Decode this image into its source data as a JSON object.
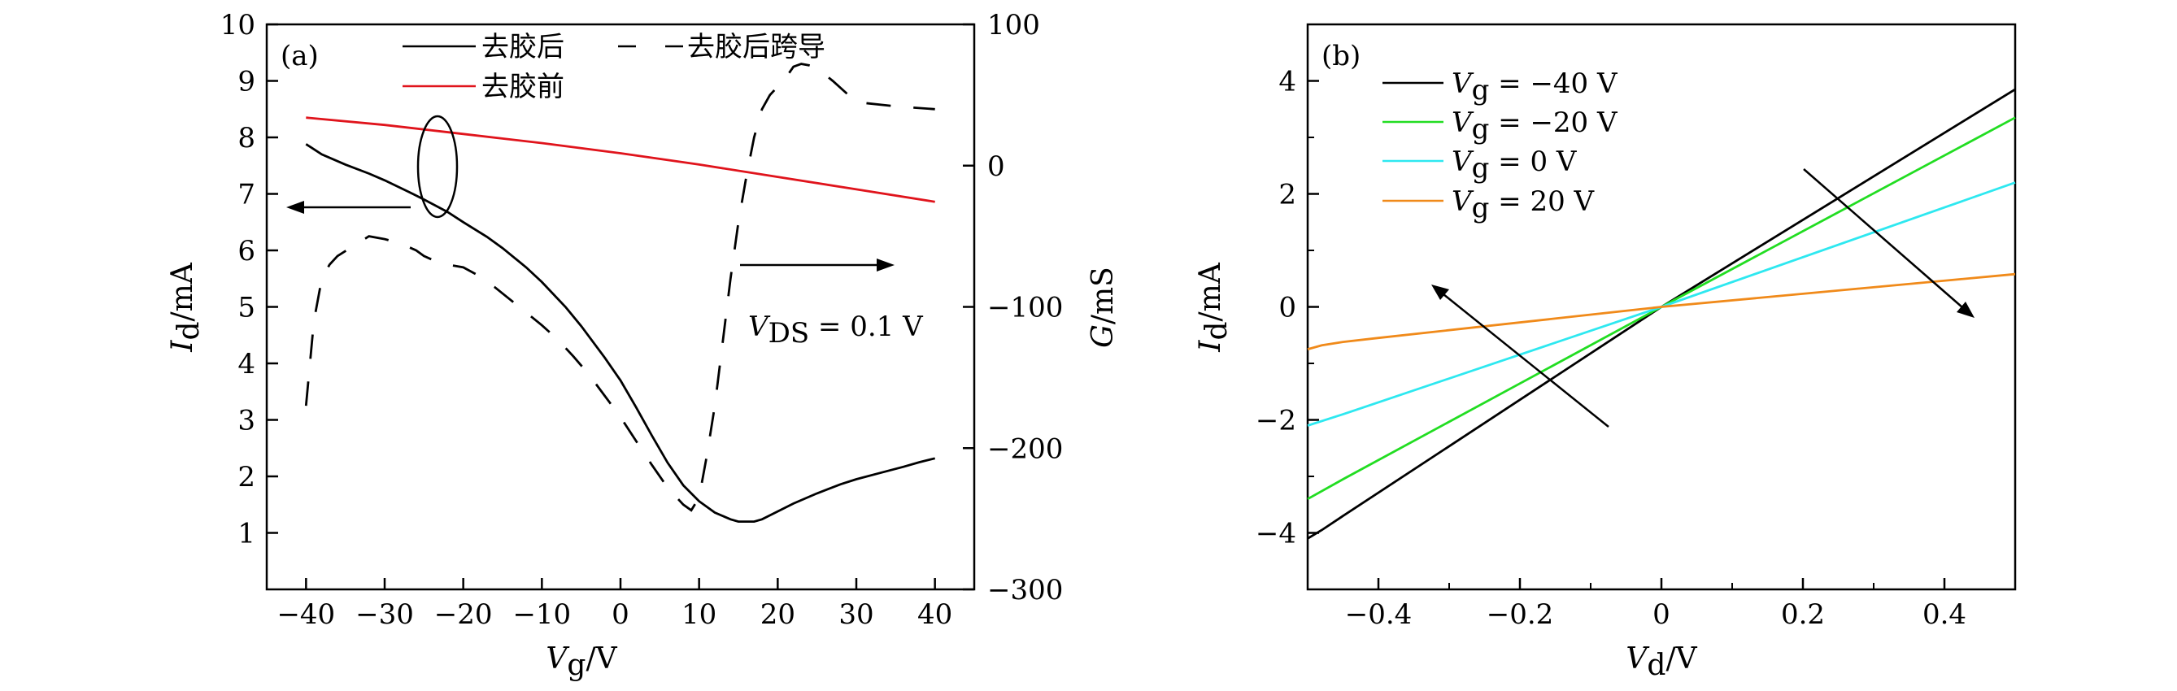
{
  "chart_data": [
    {
      "panel": "(a)",
      "type": "line",
      "xlabel": {
        "main": "V",
        "sub": "g",
        "unit": "/V"
      },
      "ylabel_left": {
        "main": "I",
        "sub": "d",
        "unit": "/mA"
      },
      "ylabel_right": {
        "main": "G",
        "unit": "/mS"
      },
      "xlim": [
        -45,
        45
      ],
      "ylim_left": [
        0,
        10
      ],
      "ylim_right": [
        -300,
        100
      ],
      "xticks": [
        -40,
        -30,
        -20,
        -10,
        0,
        10,
        20,
        30,
        40
      ],
      "xtick_labels": [
        "−40",
        "−30",
        "−20",
        "−10",
        "0",
        "10",
        "20",
        "30",
        "40"
      ],
      "yticks_left": [
        1,
        2,
        3,
        4,
        5,
        6,
        7,
        8,
        9,
        10
      ],
      "yticks_right": [
        -300,
        -200,
        -100,
        0,
        100
      ],
      "ytick_labels_right": [
        "−300",
        "−200",
        "−100",
        "0",
        "100"
      ],
      "annotation": {
        "main": "V",
        "sub": "DS",
        "rest": " = 0.1 V"
      },
      "legend": [
        {
          "label": "去胶后",
          "style": "solid",
          "color": "#000000"
        },
        {
          "label": "去胶后跨导",
          "style": "dashed",
          "color": "#000000"
        },
        {
          "label": "去胶前",
          "style": "solid",
          "color": "#e0141c"
        }
      ],
      "series": [
        {
          "name": "去胶后",
          "axis": "left",
          "color": "#000000",
          "dash": "solid",
          "x": [
            -40,
            -38,
            -35,
            -32,
            -30,
            -27,
            -25,
            -22,
            -20,
            -17,
            -15,
            -12,
            -10,
            -7,
            -5,
            -2,
            0,
            2,
            4,
            6,
            8,
            10,
            12,
            14,
            15,
            16,
            17,
            18,
            20,
            22,
            25,
            28,
            30,
            33,
            36,
            38,
            40
          ],
          "y": [
            7.88,
            7.7,
            7.52,
            7.36,
            7.24,
            7.04,
            6.9,
            6.68,
            6.5,
            6.24,
            6.04,
            5.7,
            5.44,
            5.0,
            4.66,
            4.1,
            3.7,
            3.22,
            2.72,
            2.24,
            1.84,
            1.56,
            1.36,
            1.24,
            1.2,
            1.2,
            1.2,
            1.24,
            1.38,
            1.52,
            1.7,
            1.86,
            1.95,
            2.06,
            2.17,
            2.25,
            2.32
          ]
        },
        {
          "name": "去胶后跨导",
          "axis": "right",
          "color": "#000000",
          "dash": "dashed",
          "x": [
            -40,
            -39,
            -38,
            -37,
            -36,
            -34,
            -32,
            -30,
            -28,
            -26,
            -25,
            -23,
            -22,
            -20,
            -18,
            -16,
            -14,
            -12,
            -10,
            -8,
            -6,
            -4,
            -2,
            0,
            2,
            4,
            6,
            8,
            9,
            10,
            11,
            12,
            13,
            14,
            15,
            16,
            17,
            18,
            19,
            20,
            21,
            22,
            23,
            24,
            25,
            27,
            30,
            35,
            40
          ],
          "y": [
            -170,
            -110,
            -80,
            -70,
            -64,
            -57,
            -50,
            -52,
            -55,
            -60,
            -64,
            -69,
            -70,
            -72,
            -78,
            -86,
            -95,
            -104,
            -113,
            -123,
            -135,
            -148,
            -163,
            -178,
            -195,
            -212,
            -228,
            -240,
            -244,
            -235,
            -205,
            -170,
            -125,
            -80,
            -40,
            -8,
            20,
            40,
            50,
            56,
            62,
            70,
            72,
            71,
            69,
            60,
            45,
            42,
            40
          ]
        },
        {
          "name": "去胶前",
          "axis": "left",
          "color": "#e0141c",
          "dash": "solid",
          "x": [
            -40,
            -30,
            -20,
            -10,
            0,
            10,
            20,
            30,
            40
          ],
          "y": [
            8.35,
            8.22,
            8.06,
            7.9,
            7.72,
            7.52,
            7.3,
            7.08,
            6.86
          ]
        }
      ]
    },
    {
      "panel": "(b)",
      "type": "line",
      "xlabel": {
        "main": "V",
        "sub": "d",
        "unit": "/V"
      },
      "ylabel": {
        "main": "I",
        "sub": "d",
        "unit": "/mA"
      },
      "xlim": [
        -0.5,
        0.5
      ],
      "ylim": [
        -5,
        5
      ],
      "xticks": [
        -0.4,
        -0.2,
        0,
        0.2,
        0.4
      ],
      "xtick_labels": [
        "−0.4",
        "−0.2",
        "0",
        "0.2",
        "0.4"
      ],
      "yticks": [
        -4,
        -2,
        0,
        2,
        4
      ],
      "ytick_labels": [
        "−4",
        "−2",
        "0",
        "2",
        "4"
      ],
      "series": [
        {
          "name": "−40 V",
          "color": "#000000",
          "x": [
            -0.5,
            -0.48,
            -0.45,
            0,
            0.5
          ],
          "y": [
            -4.1,
            -3.95,
            -3.7,
            0,
            3.85
          ]
        },
        {
          "name": "−20 V",
          "color": "#22dd22",
          "x": [
            -0.5,
            -0.45,
            0,
            0.5
          ],
          "y": [
            -3.4,
            -3.05,
            0,
            3.35
          ]
        },
        {
          "name": "0 V",
          "color": "#2ee8f0",
          "x": [
            -0.5,
            -0.45,
            0,
            0.5
          ],
          "y": [
            -2.1,
            -1.9,
            0,
            2.2
          ]
        },
        {
          "name": "20 V",
          "color": "#f08a1a",
          "x": [
            -0.5,
            -0.48,
            -0.45,
            -0.4,
            0,
            0.5
          ],
          "y": [
            -0.75,
            -0.68,
            -0.62,
            -0.55,
            0,
            0.58
          ]
        }
      ],
      "legend_prefix": {
        "main": "V",
        "sub": "g",
        "eq": " = "
      }
    }
  ]
}
